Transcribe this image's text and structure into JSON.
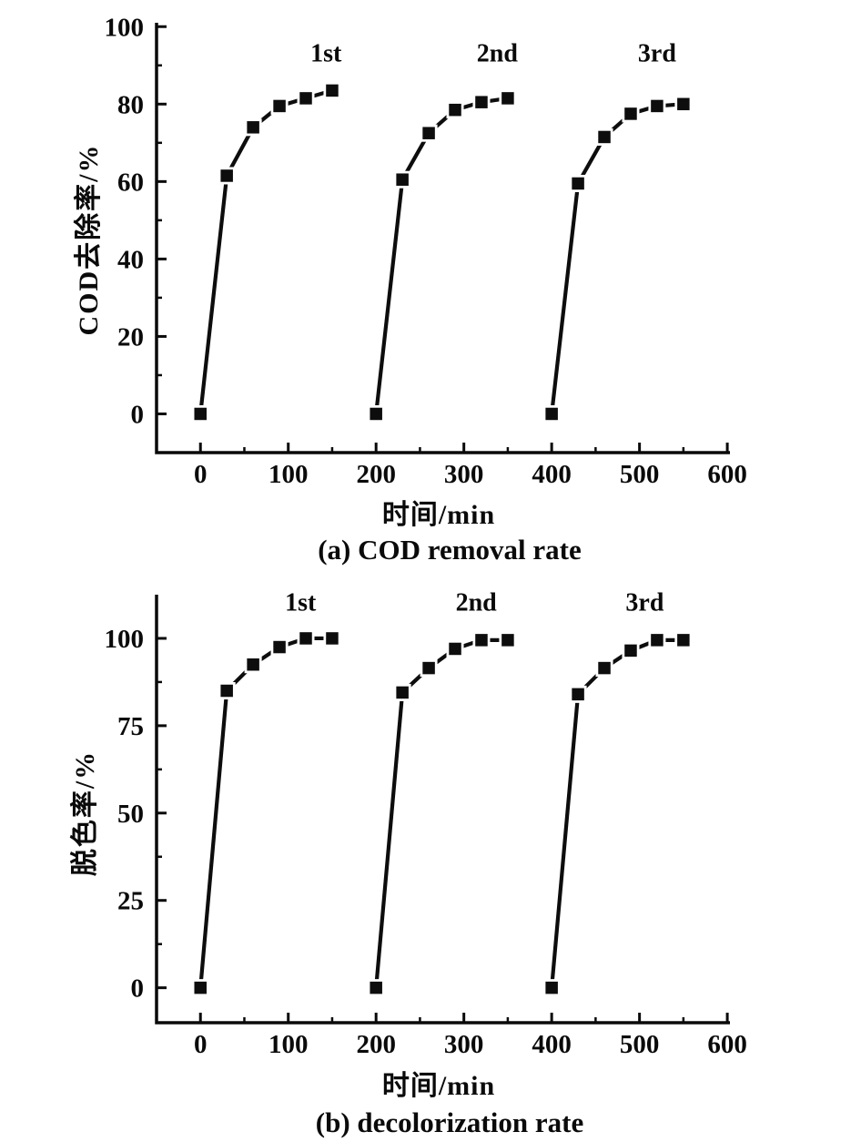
{
  "figure": {
    "background": "#ffffff",
    "ink_color": "#0a0a0a"
  },
  "chart_data": [
    {
      "id": "cod-removal",
      "type": "line",
      "caption": "(a) COD removal rate",
      "xlabel": "时间/min",
      "ylabel": "COD去除率/%",
      "xlim": [
        -50,
        603
      ],
      "ylim": [
        -10,
        101
      ],
      "x_major_ticks": [
        0,
        100,
        200,
        300,
        400,
        500,
        600
      ],
      "x_minor_ticks": [
        50,
        150,
        250,
        350,
        450,
        550
      ],
      "y_major_ticks": [
        0,
        20,
        40,
        60,
        80,
        100
      ],
      "y_minor_ticks": [
        10,
        30,
        50,
        70,
        90
      ],
      "grid": false,
      "legend_position": "inline-labels",
      "marker": "filled-square",
      "line_style": "solid",
      "series": [
        {
          "name": "1st",
          "x": [
            0,
            30,
            60,
            90,
            120,
            150
          ],
          "y": [
            0,
            61.5,
            74,
            79.5,
            81.5,
            83.5
          ],
          "label": {
            "text": "1st",
            "x": 143,
            "y": 91
          }
        },
        {
          "name": "2nd",
          "x": [
            200,
            230,
            260,
            290,
            320,
            350
          ],
          "y": [
            0,
            60.5,
            72.5,
            78.5,
            80.5,
            81.5
          ],
          "label": {
            "text": "2nd",
            "x": 338,
            "y": 91
          }
        },
        {
          "name": "3rd",
          "x": [
            400,
            430,
            460,
            490,
            520,
            550
          ],
          "y": [
            0,
            59.5,
            71.5,
            77.5,
            79.5,
            80
          ],
          "label": {
            "text": "3rd",
            "x": 520,
            "y": 91
          }
        }
      ]
    },
    {
      "id": "decolorization",
      "type": "line",
      "caption": "(b) decolorization rate",
      "xlabel": "时间/min",
      "ylabel": "脱色率/%",
      "xlim": [
        -50,
        603
      ],
      "ylim": [
        -10,
        112.5
      ],
      "x_major_ticks": [
        0,
        100,
        200,
        300,
        400,
        500,
        600
      ],
      "x_minor_ticks": [
        50,
        150,
        250,
        350,
        450,
        550
      ],
      "y_major_ticks": [
        0,
        25,
        50,
        75,
        100
      ],
      "y_minor_ticks": [
        12.5,
        37.5,
        62.5,
        87.5
      ],
      "grid": false,
      "legend_position": "inline-labels",
      "marker": "filled-square",
      "line_style": "solid",
      "series": [
        {
          "name": "1st",
          "x": [
            0,
            30,
            60,
            90,
            120,
            150
          ],
          "y": [
            0,
            85,
            92.5,
            97.5,
            100,
            100
          ],
          "label": {
            "text": "1st",
            "x": 114,
            "y": 108
          }
        },
        {
          "name": "2nd",
          "x": [
            200,
            230,
            260,
            290,
            320,
            350
          ],
          "y": [
            0,
            84.5,
            91.5,
            97,
            99.5,
            99.5
          ],
          "label": {
            "text": "2nd",
            "x": 314,
            "y": 108
          }
        },
        {
          "name": "3rd",
          "x": [
            400,
            430,
            460,
            490,
            520,
            550
          ],
          "y": [
            0,
            84,
            91.5,
            96.5,
            99.5,
            99.5
          ],
          "label": {
            "text": "3rd",
            "x": 506,
            "y": 108
          }
        }
      ]
    }
  ]
}
